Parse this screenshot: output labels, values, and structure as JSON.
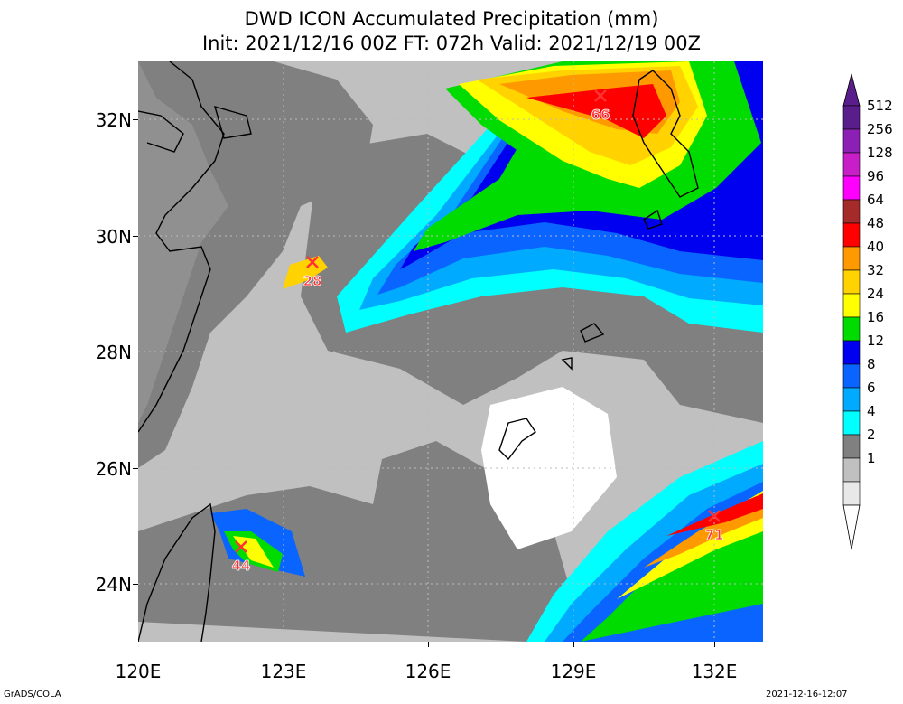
{
  "title": {
    "line1": "DWD ICON Accumulated Precipitation (mm)",
    "line2": "Init: 2021/12/16 00Z  FT: 072h  Valid: 2021/12/19 00Z"
  },
  "axes": {
    "lat_labels": [
      "32N",
      "30N",
      "28N",
      "26N",
      "24N"
    ],
    "lon_labels": [
      "120E",
      "123E",
      "126E",
      "129E",
      "132E"
    ]
  },
  "legend": {
    "levels": [
      "512",
      "256",
      "128",
      "96",
      "64",
      "48",
      "40",
      "32",
      "24",
      "16",
      "12",
      "8",
      "6",
      "4",
      "2",
      "1"
    ],
    "colors": [
      "#5a1e8c",
      "#8c1fb4",
      "#c81ec8",
      "#ff00ff",
      "#a52a2a",
      "#ff0000",
      "#ff9900",
      "#ffd200",
      "#ffff00",
      "#00dc00",
      "#0000f0",
      "#0a64ff",
      "#00aaff",
      "#00ffff",
      "#808080",
      "#c0c0c0"
    ]
  },
  "markers": [
    {
      "label": "28",
      "lon": 123.55,
      "lat": 29.5
    },
    {
      "label": "44",
      "lon": 122.1,
      "lat": 24.6
    },
    {
      "label": "66",
      "lon": 129.85,
      "lat": 32.4
    },
    {
      "label": "71",
      "lon": 132.0,
      "lat": 25.1
    }
  ],
  "footer": {
    "left": "GrADS/COLA",
    "right": "2021-12-16-12:07"
  },
  "colors": {
    "marker": "#ff3333",
    "coast": "#000000",
    "grid": "#bbbbbb"
  }
}
